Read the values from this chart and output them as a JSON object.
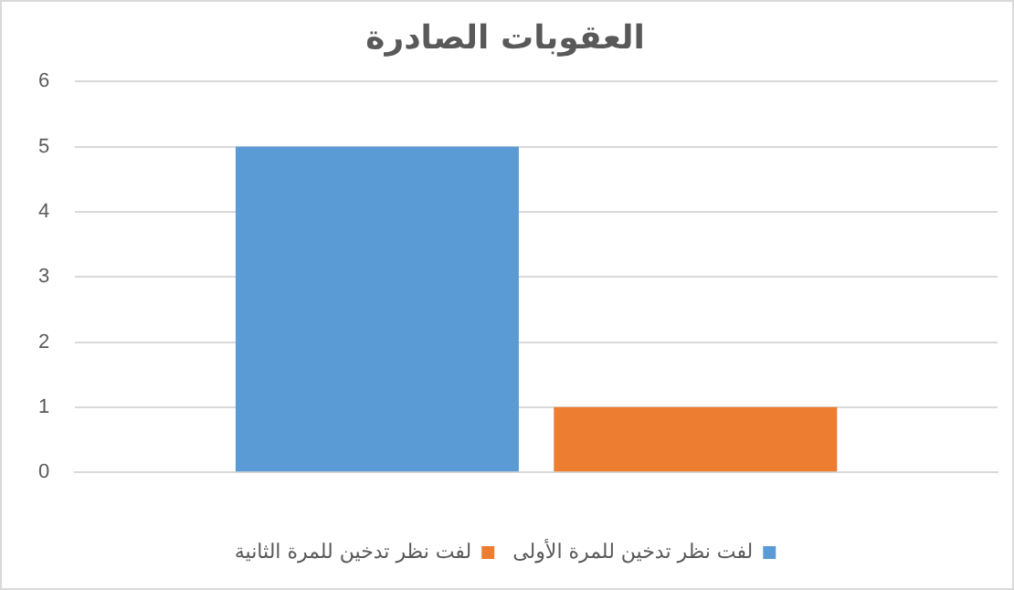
{
  "chart_data": {
    "type": "bar",
    "title": "العقوبات الصادرة",
    "categories": [
      null
    ],
    "series": [
      {
        "name": "لفت نظر تدخين للمرة الأولى",
        "color": "#5b9bd5",
        "values": [
          5
        ]
      },
      {
        "name": "لفت نظر تدخين للمرة الثانية",
        "color": "#ed7d31",
        "values": [
          1
        ]
      }
    ],
    "ylim": [
      0,
      6
    ],
    "yticks": [
      0,
      1,
      2,
      3,
      4,
      5,
      6
    ],
    "grid": "y",
    "legend": "bottom"
  }
}
